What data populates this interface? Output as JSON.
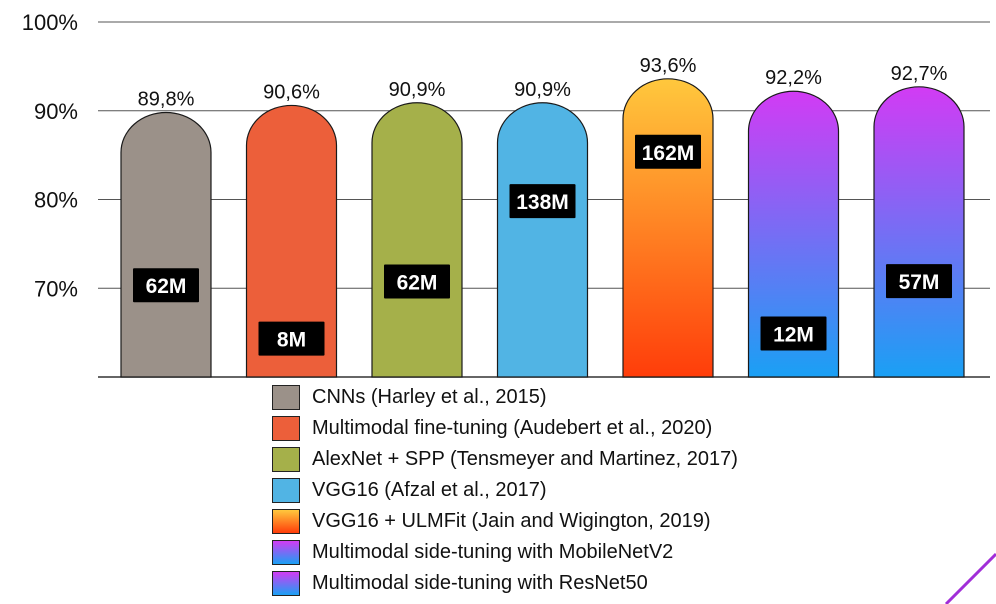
{
  "chart_data": {
    "type": "bar",
    "categories": [
      "CNNs (Harley et al., 2015)",
      "Multimodal fine-tuning (Audebert et al., 2020)",
      "AlexNet + SPP (Tensmeyer and Martinez, 2017)",
      "VGG16 (Afzal et al., 2017)",
      "VGG16 + ULMFit (Jain and Wigington, 2019)",
      "Multimodal side-tuning with MobileNetV2",
      "Multimodal side-tuning with ResNet50"
    ],
    "values": [
      89.8,
      90.6,
      90.9,
      90.9,
      93.6,
      92.2,
      92.7
    ],
    "value_labels": [
      "89,8%",
      "90,6%",
      "90,9%",
      "90,9%",
      "93,6%",
      "92,2%",
      "92,7%"
    ],
    "params": [
      "62M",
      "8M",
      "62M",
      "138M",
      "162M",
      "12M",
      "57M"
    ],
    "params_millions": [
      62,
      8,
      62,
      138,
      162,
      12,
      57
    ],
    "yticks": [
      70,
      80,
      90,
      100
    ],
    "ytick_labels": [
      "70%",
      "80%",
      "90%",
      "100%"
    ],
    "ylim": [
      60,
      100
    ],
    "grid": true,
    "legend_position": "bottom-center",
    "colors": [
      {
        "top": "#9b9189",
        "bottom": "#9b9189"
      },
      {
        "top": "#ec5f3a",
        "bottom": "#ec5f3a"
      },
      {
        "top": "#a5b04a",
        "bottom": "#a5b04a"
      },
      {
        "top": "#51b4e4",
        "bottom": "#51b4e4"
      },
      {
        "top": "#ffc83d",
        "bottom": "#ff3d0a"
      },
      {
        "top": "#d23bf4",
        "bottom": "#1aa0f4"
      },
      {
        "top": "#d23bf4",
        "bottom": "#1aa0f4"
      }
    ]
  },
  "decoration": {
    "corner_line_color": "#a12ed8"
  }
}
